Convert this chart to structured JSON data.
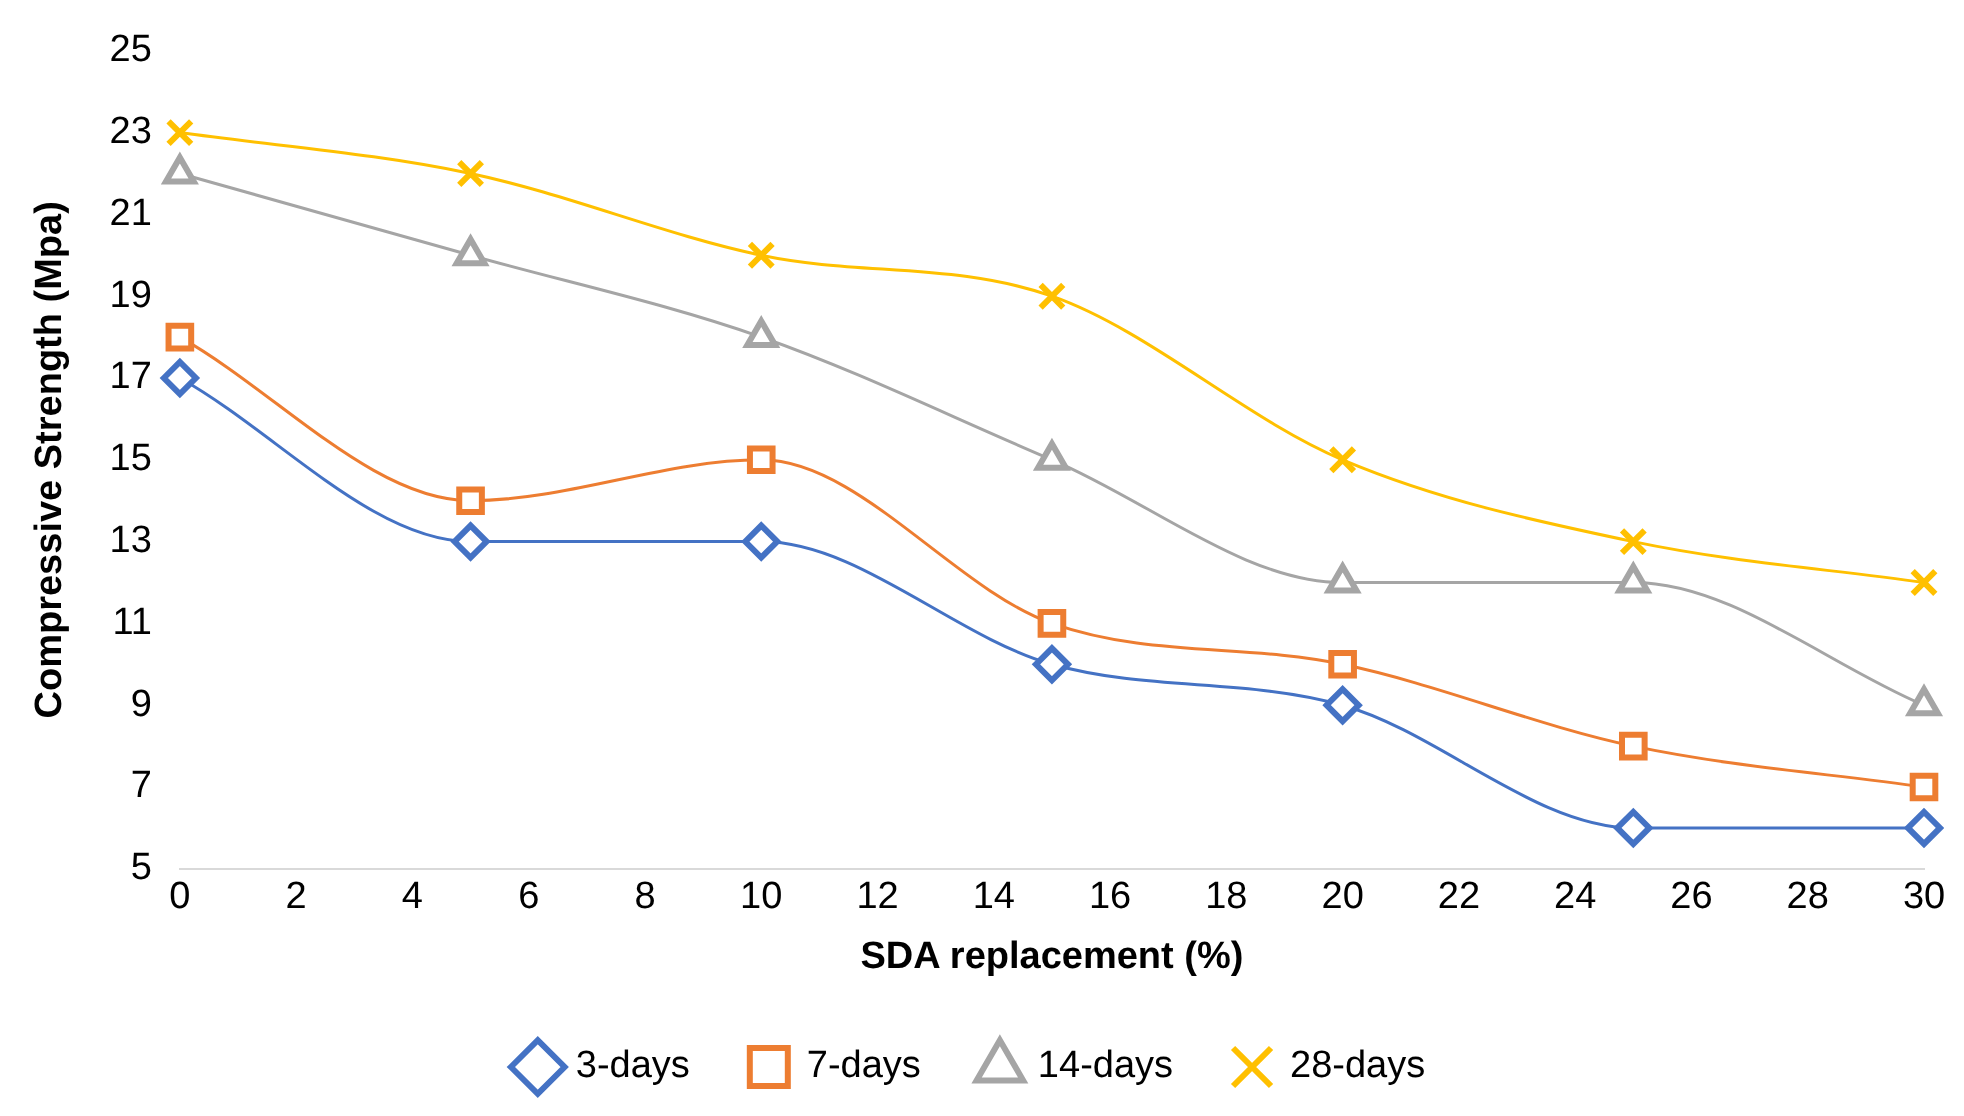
{
  "chart_data": {
    "type": "line",
    "xlabel": "SDA replacement (%)",
    "ylabel": "Compressive Strength (Mpa)",
    "x": [
      0,
      5,
      10,
      15,
      20,
      25,
      30
    ],
    "xlim": [
      0,
      30
    ],
    "xticks": [
      0,
      2,
      4,
      6,
      8,
      10,
      12,
      14,
      16,
      18,
      20,
      22,
      24,
      26,
      28,
      30
    ],
    "ylim": [
      5,
      25
    ],
    "yticks": [
      5,
      7,
      9,
      11,
      13,
      15,
      17,
      19,
      21,
      23,
      25
    ],
    "grid": false,
    "legend": "bottom",
    "series": [
      {
        "name": "3-days",
        "color": "#4472c4",
        "marker": "diamond",
        "values": [
          17,
          13,
          13,
          10,
          9,
          6,
          6
        ]
      },
      {
        "name": "7-days",
        "color": "#ed7d31",
        "marker": "square",
        "values": [
          18,
          14,
          15,
          11,
          10,
          8,
          7
        ]
      },
      {
        "name": "14-days",
        "color": "#a5a5a5",
        "marker": "triangle",
        "values": [
          22,
          20,
          18,
          15,
          12,
          12,
          9
        ]
      },
      {
        "name": "28-days",
        "color": "#ffc000",
        "marker": "cross",
        "values": [
          23,
          22,
          20,
          19,
          15,
          13,
          12
        ]
      }
    ]
  }
}
